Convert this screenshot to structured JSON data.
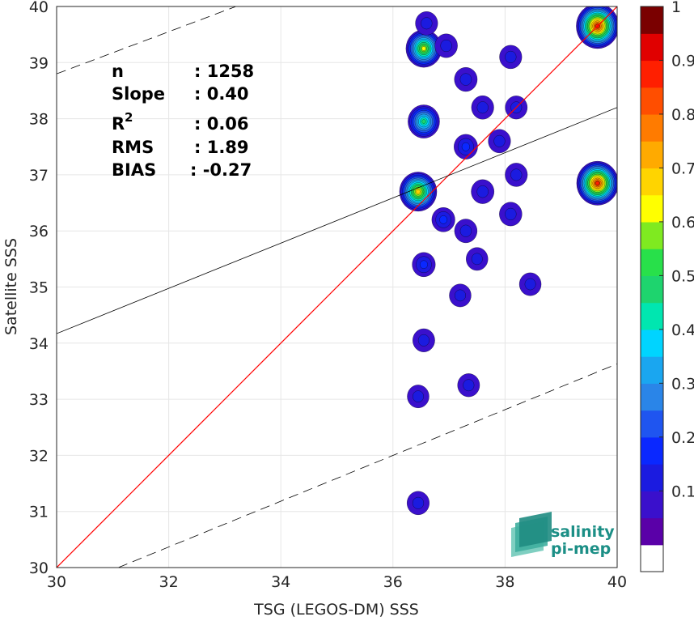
{
  "chart_data": {
    "type": "heatmap",
    "xlabel": "TSG (LEGOS-DM) SSS",
    "ylabel": "Satellite SSS",
    "xlim": [
      30,
      40
    ],
    "ylim": [
      30,
      40
    ],
    "xticks": [
      30,
      32,
      34,
      36,
      38,
      40
    ],
    "yticks": [
      30,
      31,
      32,
      33,
      34,
      35,
      36,
      37,
      38,
      39,
      40
    ],
    "grid": true,
    "stats": {
      "n_label": "n",
      "n_value": ": 1258",
      "slope_label": "Slope",
      "slope_value": ": 0.40",
      "r2_label": "R",
      "r2_sup": "2",
      "r2_value": ": 0.06",
      "rms_label": "RMS",
      "rms_value": ": 1.89",
      "bias_label": "BIAS",
      "bias_value": ": -0.27"
    },
    "lines": {
      "identity": {
        "color": "#ff0000",
        "points": [
          [
            30,
            30
          ],
          [
            40,
            40
          ]
        ]
      },
      "regression": {
        "color": "#000000",
        "points": [
          [
            30,
            34.17
          ],
          [
            40,
            38.2
          ]
        ]
      },
      "upper_bound": {
        "color": "#000000",
        "dash": true,
        "points": [
          [
            30,
            38.8
          ],
          [
            33.2,
            40
          ]
        ]
      },
      "lower_bound": {
        "color": "#000000",
        "dash": true,
        "points": [
          [
            31.1,
            30
          ],
          [
            40,
            33.63
          ]
        ]
      }
    },
    "density_blobs": [
      {
        "x": 36.45,
        "y": 36.7,
        "peak": 0.68
      },
      {
        "x": 36.55,
        "y": 37.95,
        "peak": 0.47
      },
      {
        "x": 36.55,
        "y": 39.25,
        "peak": 0.62
      },
      {
        "x": 36.6,
        "y": 39.7,
        "peak": 0.12
      },
      {
        "x": 36.95,
        "y": 39.3,
        "peak": 0.13
      },
      {
        "x": 37.3,
        "y": 38.7,
        "peak": 0.14
      },
      {
        "x": 37.3,
        "y": 37.5,
        "peak": 0.17
      },
      {
        "x": 37.6,
        "y": 38.2,
        "peak": 0.12
      },
      {
        "x": 37.9,
        "y": 37.6,
        "peak": 0.12
      },
      {
        "x": 38.2,
        "y": 38.2,
        "peak": 0.11
      },
      {
        "x": 38.2,
        "y": 37.0,
        "peak": 0.12
      },
      {
        "x": 36.9,
        "y": 36.2,
        "peak": 0.15
      },
      {
        "x": 37.3,
        "y": 36.0,
        "peak": 0.13
      },
      {
        "x": 37.6,
        "y": 36.7,
        "peak": 0.14
      },
      {
        "x": 38.1,
        "y": 36.3,
        "peak": 0.13
      },
      {
        "x": 36.55,
        "y": 35.4,
        "peak": 0.15
      },
      {
        "x": 36.55,
        "y": 34.05,
        "peak": 0.11
      },
      {
        "x": 38.1,
        "y": 39.1,
        "peak": 0.12
      },
      {
        "x": 39.65,
        "y": 39.65,
        "peak": 0.88
      },
      {
        "x": 39.65,
        "y": 36.85,
        "peak": 0.85
      },
      {
        "x": 36.45,
        "y": 31.15,
        "peak": 0.12
      },
      {
        "x": 37.35,
        "y": 33.25,
        "peak": 0.11
      },
      {
        "x": 36.45,
        "y": 33.05,
        "peak": 0.1
      },
      {
        "x": 37.2,
        "y": 34.85,
        "peak": 0.1
      },
      {
        "x": 38.45,
        "y": 35.05,
        "peak": 0.1
      },
      {
        "x": 37.5,
        "y": 35.5,
        "peak": 0.1
      }
    ],
    "colorbar": {
      "ticks": [
        "0.1",
        "0.2",
        "0.3",
        "0.4",
        "0.5",
        "0.6",
        "0.7",
        "0.8",
        "0.9",
        "1"
      ],
      "colors": [
        "#ffffff",
        "#5a00a8",
        "#3a10cc",
        "#1b1be0",
        "#0a28ff",
        "#1f55f0",
        "#2a85e8",
        "#1aa6f0",
        "#00d4ff",
        "#00e6b0",
        "#1ed46e",
        "#28e04a",
        "#7fea20",
        "#ffff00",
        "#ffd400",
        "#ffaa00",
        "#ff7b00",
        "#ff4e00",
        "#ff1f00",
        "#e00000",
        "#7a0000"
      ]
    }
  },
  "logo": {
    "line1": "salinity",
    "line2": "pi-mep"
  }
}
